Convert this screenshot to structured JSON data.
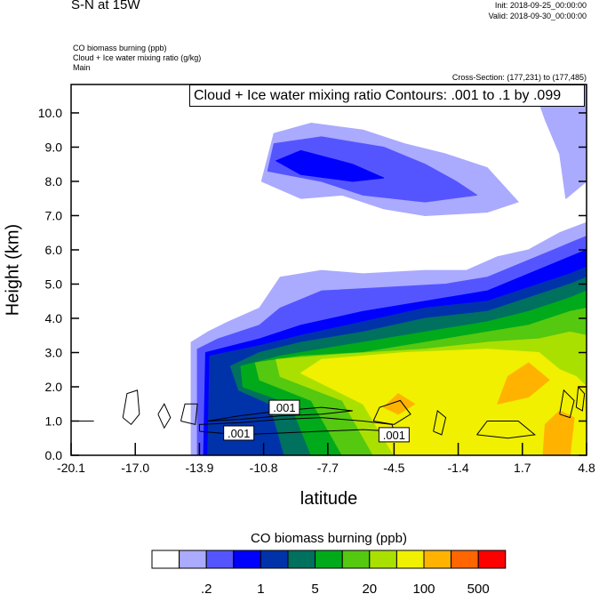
{
  "header": {
    "title": "S-N at 15W",
    "init": "Init: 2018-09-25_00:00:00",
    "valid": "Valid: 2018-09-30_00:00:00",
    "field1": "CO biomass burning   (ppb)",
    "field2": "Cloud + Ice water mixing ratio   (g/kg)",
    "field3": "Main",
    "cross_section": "Cross-Section: (177,231) to (177,485)",
    "contour_info": "Cloud + Ice water mixing ratio Contours: .001 to .1 by .099"
  },
  "chart_data": {
    "type": "heatmap",
    "xlabel": "latitude",
    "ylabel": "Height (km)",
    "xlim": [
      -20.1,
      4.8
    ],
    "ylim": [
      0,
      10.83
    ],
    "xticks": [
      "-20.1",
      "-17.0",
      "-13.9",
      "-10.8",
      "-7.7",
      "-4.5",
      "-1.4",
      "1.7",
      "4.8"
    ],
    "xtick_values": [
      -20.1,
      -17.0,
      -13.9,
      -10.8,
      -7.7,
      -4.5,
      -1.4,
      1.7,
      4.8
    ],
    "yticks": [
      "0.0",
      "1.0",
      "2.0",
      "3.0",
      "4.0",
      "5.0",
      "6.0",
      "7.0",
      "8.0",
      "9.0",
      "10.0"
    ],
    "ytick_values": [
      0,
      1,
      2,
      3,
      4,
      5,
      6,
      7,
      8,
      9,
      10
    ],
    "colorbar": {
      "title": "CO biomass burning  (ppb)",
      "colors": [
        "#ffffff",
        "#aaaaff",
        "#5555ff",
        "#0000ff",
        "#0033aa",
        "#00705f",
        "#00aa1a",
        "#55c810",
        "#aae000",
        "#f0f000",
        "#ffb300",
        "#ff6600",
        "#ff0000"
      ],
      "labels": [
        ".2",
        "1",
        "5",
        "20",
        "100",
        "500"
      ],
      "label_after_box": [
        1,
        3,
        5,
        7,
        9,
        11
      ]
    },
    "filled_regions": [
      {
        "level": 1,
        "points": [
          [
            -14.3,
            0
          ],
          [
            -14.3,
            3.3
          ],
          [
            -13.5,
            3.6
          ],
          [
            -12.5,
            3.9
          ],
          [
            -11,
            4.3
          ],
          [
            -10,
            5.2
          ],
          [
            -8,
            5.4
          ],
          [
            -6,
            5.3
          ],
          [
            -3,
            5.4
          ],
          [
            -1,
            5.4
          ],
          [
            0.5,
            5.8
          ],
          [
            2,
            6.0
          ],
          [
            3.5,
            6.5
          ],
          [
            4.8,
            6.8
          ],
          [
            4.8,
            0
          ]
        ]
      },
      {
        "level": 1,
        "points": [
          [
            -10.9,
            8.0
          ],
          [
            -10.3,
            9.4
          ],
          [
            -8.5,
            9.7
          ],
          [
            -6,
            9.5
          ],
          [
            -4,
            9.1
          ],
          [
            -2,
            8.8
          ],
          [
            0,
            8.4
          ],
          [
            1.5,
            7.4
          ],
          [
            0,
            7.1
          ],
          [
            -3,
            7.0
          ],
          [
            -5,
            7.2
          ],
          [
            -7,
            7.6
          ],
          [
            -9,
            7.5
          ]
        ]
      },
      {
        "level": 1,
        "points": [
          [
            2.2,
            10.83
          ],
          [
            4.8,
            10.83
          ],
          [
            4.8,
            8.0
          ],
          [
            3.8,
            7.5
          ],
          [
            3.5,
            8.8
          ],
          [
            2.8,
            9.8
          ]
        ]
      },
      {
        "level": 2,
        "points": [
          [
            -14.0,
            0
          ],
          [
            -14.0,
            3.1
          ],
          [
            -13,
            3.4
          ],
          [
            -11,
            3.8
          ],
          [
            -10,
            4.3
          ],
          [
            -8,
            4.8
          ],
          [
            -5,
            4.9
          ],
          [
            -2,
            5.0
          ],
          [
            0,
            5.2
          ],
          [
            2,
            5.7
          ],
          [
            4,
            6.2
          ],
          [
            4.8,
            6.4
          ],
          [
            4.8,
            0
          ]
        ]
      },
      {
        "level": 2,
        "points": [
          [
            -10.6,
            8.3
          ],
          [
            -10.3,
            9.1
          ],
          [
            -8,
            9.3
          ],
          [
            -5,
            9.0
          ],
          [
            -3,
            8.5
          ],
          [
            -1.5,
            8.0
          ],
          [
            -0.5,
            7.6
          ],
          [
            -3,
            7.4
          ],
          [
            -6,
            7.6
          ],
          [
            -8,
            8.0
          ]
        ]
      },
      {
        "level": 3,
        "points": [
          [
            -13.7,
            0
          ],
          [
            -13.6,
            3.0
          ],
          [
            -11,
            3.4
          ],
          [
            -9,
            3.8
          ],
          [
            -6,
            4.2
          ],
          [
            -3,
            4.5
          ],
          [
            0,
            4.8
          ],
          [
            2,
            5.3
          ],
          [
            4,
            5.8
          ],
          [
            4.8,
            6.0
          ],
          [
            4.8,
            0
          ]
        ]
      },
      {
        "level": 3,
        "points": [
          [
            -10.2,
            8.6
          ],
          [
            -9,
            8.9
          ],
          [
            -6.5,
            8.5
          ],
          [
            -5,
            8.1
          ],
          [
            -6.5,
            8.0
          ],
          [
            -9,
            8.2
          ]
        ]
      },
      {
        "level": 4,
        "points": [
          [
            -13.5,
            0
          ],
          [
            -13.4,
            2.9
          ],
          [
            -11,
            3.2
          ],
          [
            -9,
            3.5
          ],
          [
            -6,
            3.9
          ],
          [
            -3,
            4.3
          ],
          [
            0,
            4.5
          ],
          [
            2,
            4.9
          ],
          [
            4,
            5.3
          ],
          [
            4.8,
            5.5
          ],
          [
            4.8,
            0
          ]
        ]
      },
      {
        "level": 5,
        "points": [
          [
            -9.8,
            0
          ],
          [
            -10.5,
            1.5
          ],
          [
            -12,
            1.9
          ],
          [
            -12.4,
            2.6
          ],
          [
            -11,
            3.0
          ],
          [
            -9,
            3.3
          ],
          [
            -6,
            3.6
          ],
          [
            -3,
            4.0
          ],
          [
            0,
            4.2
          ],
          [
            2,
            4.6
          ],
          [
            4,
            5.0
          ],
          [
            4.8,
            5.2
          ],
          [
            4.8,
            0
          ]
        ]
      },
      {
        "level": 6,
        "points": [
          [
            -8.5,
            0
          ],
          [
            -9.5,
            1.5
          ],
          [
            -11.8,
            2.0
          ],
          [
            -11.9,
            2.6
          ],
          [
            -10,
            2.9
          ],
          [
            -7,
            3.2
          ],
          [
            -3,
            3.6
          ],
          [
            0,
            3.9
          ],
          [
            2,
            4.2
          ],
          [
            4,
            4.6
          ],
          [
            4.8,
            4.8
          ],
          [
            4.8,
            0
          ]
        ]
      },
      {
        "level": 7,
        "points": [
          [
            -7,
            0
          ],
          [
            -8.5,
            1.6
          ],
          [
            -11,
            2.2
          ],
          [
            -11.2,
            2.7
          ],
          [
            -9,
            2.9
          ],
          [
            -6,
            3.0
          ],
          [
            -3,
            3.3
          ],
          [
            0,
            3.6
          ],
          [
            2,
            3.8
          ],
          [
            4,
            4.2
          ],
          [
            4.8,
            4.3
          ],
          [
            4.8,
            0
          ]
        ]
      },
      {
        "level": 8,
        "points": [
          [
            -5.5,
            0
          ],
          [
            -7,
            1.6
          ],
          [
            -10,
            2.3
          ],
          [
            -10.2,
            2.8
          ],
          [
            -7,
            2.95
          ],
          [
            -3,
            3.1
          ],
          [
            0,
            3.3
          ],
          [
            2.5,
            3.4
          ],
          [
            4,
            3.6
          ],
          [
            4.8,
            3.5
          ],
          [
            4.8,
            0
          ]
        ]
      },
      {
        "level": 9,
        "points": [
          [
            -4.5,
            0
          ],
          [
            -6,
            1.5
          ],
          [
            -9,
            2.4
          ],
          [
            -8,
            2.8
          ],
          [
            -4,
            3.0
          ],
          [
            0,
            3.1
          ],
          [
            2.5,
            3.0
          ],
          [
            3.5,
            2.5
          ],
          [
            4.3,
            2.3
          ],
          [
            4.8,
            2.0
          ],
          [
            4.8,
            0
          ]
        ]
      },
      {
        "level": 10,
        "points": [
          [
            -5,
            1.4
          ],
          [
            -4.3,
            1.8
          ],
          [
            -3.5,
            1.5
          ],
          [
            -4.3,
            1.2
          ]
        ]
      },
      {
        "level": 10,
        "points": [
          [
            0.5,
            1.5
          ],
          [
            1,
            2.3
          ],
          [
            2,
            2.7
          ],
          [
            3,
            2.2
          ],
          [
            2,
            1.7
          ]
        ]
      },
      {
        "level": 10,
        "points": [
          [
            2.7,
            0
          ],
          [
            2.8,
            0.9
          ],
          [
            3.5,
            1.3
          ],
          [
            4.2,
            1.1
          ],
          [
            4.0,
            0
          ]
        ]
      }
    ],
    "contour_lines": [
      [
        [
          -13.9,
          0.7
        ],
        [
          -12,
          0.6
        ],
        [
          -10,
          0.65
        ],
        [
          -8,
          0.7
        ],
        [
          -6,
          0.75
        ],
        [
          -4.5,
          0.7
        ],
        [
          -4.6,
          0.9
        ],
        [
          -6,
          1.0
        ],
        [
          -8,
          1.1
        ],
        [
          -10,
          1.05
        ],
        [
          -12,
          0.95
        ],
        [
          -13.9,
          0.9
        ],
        [
          -13.9,
          0.7
        ]
      ],
      [
        [
          -13.5,
          1.0
        ],
        [
          -12,
          1.15
        ],
        [
          -10,
          1.3
        ],
        [
          -8,
          1.4
        ],
        [
          -6.5,
          1.3
        ],
        [
          -8,
          1.2
        ],
        [
          -10,
          1.15
        ],
        [
          -12,
          1.05
        ],
        [
          -13.5,
          1.0
        ]
      ],
      [
        [
          -17.6,
          1.1
        ],
        [
          -17.4,
          1.8
        ],
        [
          -16.9,
          1.9
        ],
        [
          -16.8,
          1.2
        ],
        [
          -17.2,
          0.9
        ],
        [
          -17.6,
          1.1
        ]
      ],
      [
        [
          -15.9,
          1.2
        ],
        [
          -15.6,
          1.5
        ],
        [
          -15.3,
          1.1
        ],
        [
          -15.6,
          0.8
        ],
        [
          -15.9,
          1.2
        ]
      ],
      [
        [
          -14.8,
          1.0
        ],
        [
          -14.6,
          1.5
        ],
        [
          -14.0,
          1.5
        ],
        [
          -14.1,
          0.9
        ],
        [
          -14.8,
          1.0
        ]
      ],
      [
        [
          -5.5,
          1.0
        ],
        [
          -5.2,
          1.4
        ],
        [
          -4.2,
          1.6
        ],
        [
          -3.7,
          1.2
        ],
        [
          -4.5,
          0.9
        ],
        [
          -5.5,
          1.0
        ]
      ],
      [
        [
          -2.6,
          0.7
        ],
        [
          -2.4,
          1.3
        ],
        [
          -2.0,
          1.1
        ],
        [
          -2.2,
          0.6
        ],
        [
          -2.6,
          0.7
        ]
      ],
      [
        [
          -0.5,
          0.6
        ],
        [
          0.0,
          1.0
        ],
        [
          1.5,
          1.0
        ],
        [
          2.3,
          0.6
        ],
        [
          1,
          0.5
        ],
        [
          -0.5,
          0.6
        ]
      ],
      [
        [
          3.5,
          1.2
        ],
        [
          3.7,
          1.9
        ],
        [
          4.2,
          1.6
        ],
        [
          4.0,
          1.1
        ],
        [
          3.5,
          1.2
        ]
      ],
      [
        [
          4.3,
          1.4
        ],
        [
          4.4,
          2.0
        ],
        [
          4.7,
          1.8
        ],
        [
          4.6,
          1.3
        ],
        [
          4.3,
          1.4
        ]
      ],
      [
        [
          -19.9,
          1.0
        ],
        [
          -19.0,
          1.0
        ]
      ]
    ],
    "contour_labels": [
      {
        "text": ".001",
        "x": -12.0,
        "y": 0.65
      },
      {
        "text": ".001",
        "x": -9.8,
        "y": 1.4
      },
      {
        "text": ".001",
        "x": -4.5,
        "y": 0.6
      }
    ]
  }
}
